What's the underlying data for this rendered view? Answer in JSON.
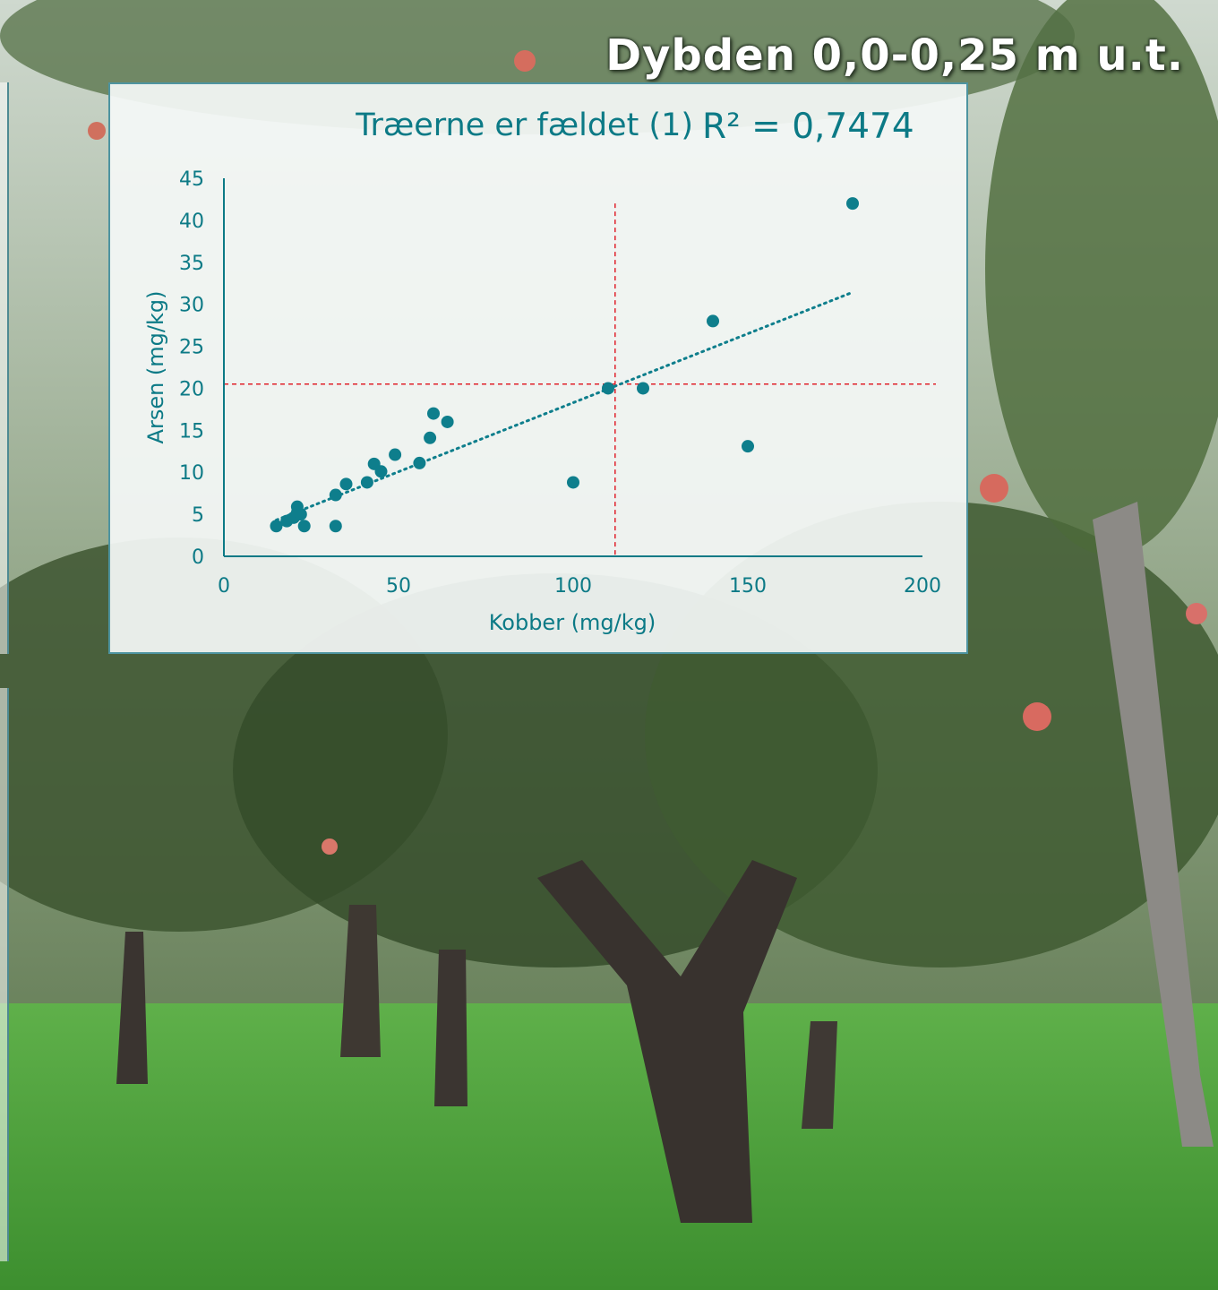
{
  "slide": {
    "title": "Dybden 0,0-0,25 m u.t."
  },
  "colors": {
    "accent": "#0c7a86",
    "points": "#0e7e8c",
    "threshold_lines": "#e0202a",
    "card_border": "#4e94a0"
  },
  "chart_data": {
    "type": "scatter",
    "title": "Træerne er fældet (1)",
    "annotation": "R² = 0,7474",
    "xlabel": "Kobber (mg/kg)",
    "ylabel": "Arsen (mg/kg)",
    "xlim": [
      0,
      200
    ],
    "ylim": [
      0,
      45
    ],
    "xticks": [
      "0",
      "50",
      "100",
      "150",
      "200"
    ],
    "yticks": [
      "0",
      "5",
      "10",
      "15",
      "20",
      "25",
      "30",
      "35",
      "40",
      "45"
    ],
    "grid": false,
    "legend": "none",
    "series": [
      {
        "x": [
          15,
          18,
          20,
          21,
          21,
          22,
          23,
          32,
          32,
          35,
          41,
          43,
          45,
          49,
          56,
          59,
          60,
          64,
          100,
          110,
          120,
          140,
          150,
          180
        ],
        "y": [
          3.6,
          4.2,
          4.6,
          5.9,
          5.2,
          5.0,
          3.6,
          3.6,
          7.3,
          8.6,
          8.8,
          11.0,
          10.1,
          12.1,
          11.1,
          14.1,
          17.0,
          16.0,
          8.8,
          20.0,
          20.0,
          28.0,
          13.1,
          42.0
        ]
      }
    ],
    "trendline": {
      "style": "dotted",
      "x": [
        15,
        180
      ]
    },
    "reference_lines": {
      "x": 112,
      "y": 20.5,
      "style": "dashed"
    }
  }
}
